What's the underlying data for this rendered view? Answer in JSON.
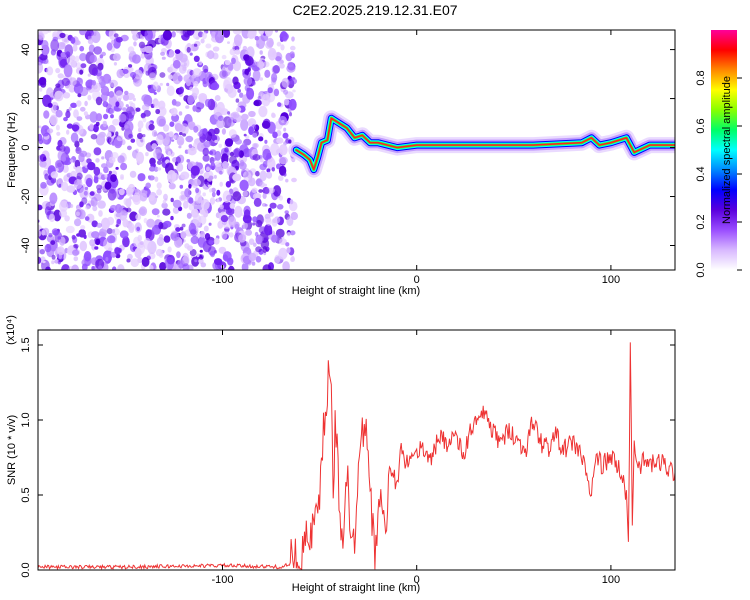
{
  "title": "C2E2.2025.219.12.31.E07",
  "chart_data": [
    {
      "type": "heatmap",
      "xlabel": "Height of straight line (km)",
      "ylabel": "Frequency (Hz)",
      "xlim": [
        -195,
        133
      ],
      "ylim": [
        -50,
        48
      ],
      "xticks": [
        -100,
        0,
        100
      ],
      "yticks": [
        -40,
        -20,
        0,
        20,
        40
      ],
      "colorbar": {
        "label": "Normalized spectral amplitude",
        "range": [
          0,
          1
        ],
        "ticks": [
          "0.0",
          "0.2",
          "0.4",
          "0.6",
          "0.8"
        ],
        "colors": [
          "#ffffff",
          "#d8b8ff",
          "#9a4dff",
          "#5a00dd",
          "#0000ff",
          "#0088ff",
          "#00ffff",
          "#00ff66",
          "#88ff00",
          "#ffff00",
          "#ff8800",
          "#ff0000",
          "#ff0099"
        ]
      },
      "noise_region_x": [
        -195,
        -63
      ],
      "ridge": [
        {
          "x": -62,
          "y": -1
        },
        {
          "x": -58,
          "y": -3
        },
        {
          "x": -55,
          "y": -5
        },
        {
          "x": -53,
          "y": -9
        },
        {
          "x": -51,
          "y": -4
        },
        {
          "x": -49,
          "y": 2
        },
        {
          "x": -46,
          "y": 3
        },
        {
          "x": -44,
          "y": 12
        },
        {
          "x": -40,
          "y": 10
        },
        {
          "x": -36,
          "y": 8
        },
        {
          "x": -32,
          "y": 4
        },
        {
          "x": -28,
          "y": 5
        },
        {
          "x": -24,
          "y": 2
        },
        {
          "x": -20,
          "y": 2
        },
        {
          "x": -10,
          "y": 0
        },
        {
          "x": 0,
          "y": 1
        },
        {
          "x": 10,
          "y": 1
        },
        {
          "x": 30,
          "y": 1
        },
        {
          "x": 60,
          "y": 1
        },
        {
          "x": 85,
          "y": 2
        },
        {
          "x": 90,
          "y": 4
        },
        {
          "x": 94,
          "y": 1
        },
        {
          "x": 100,
          "y": 2
        },
        {
          "x": 108,
          "y": 4
        },
        {
          "x": 112,
          "y": -2
        },
        {
          "x": 120,
          "y": 1
        },
        {
          "x": 133,
          "y": 1
        }
      ]
    },
    {
      "type": "line",
      "xlabel": "Height of straight line (km)",
      "ylabel": "SNR (10 * v/v)",
      "yscale_label": "(x10⁴)",
      "xlim": [
        -195,
        133
      ],
      "ylim": [
        0,
        1.6
      ],
      "xticks": [
        -100,
        0,
        100
      ],
      "yticks": [
        0.0,
        0.5,
        1.0,
        1.5
      ],
      "ytick_labels": [
        "0.0",
        "0.5",
        "1.0",
        "1.5"
      ],
      "color": "#ee3333",
      "series": [
        {
          "x": [
            -195,
            -150,
            -100,
            -70,
            -62,
            -55,
            -50,
            -48,
            -46,
            -44,
            -43,
            -42,
            -40,
            -38,
            -36,
            -35,
            -34,
            -32,
            -30,
            -28,
            -26,
            -24,
            -22,
            -20,
            -18,
            -16,
            -14,
            -12,
            -10,
            -8,
            -6,
            -4,
            -2,
            0,
            4,
            8,
            12,
            16,
            20,
            24,
            28,
            32,
            36,
            38,
            40,
            44,
            48,
            52,
            56,
            60,
            64,
            68,
            72,
            76,
            80,
            84,
            88,
            90,
            92,
            96,
            100,
            104,
            106,
            108,
            109,
            110,
            111,
            112,
            114,
            118,
            122,
            126,
            130,
            133
          ],
          "values": [
            0.02,
            0.02,
            0.03,
            0.02,
            0.05,
            0.2,
            0.4,
            0.9,
            1.2,
            1.38,
            0.3,
            1.1,
            0.5,
            0.2,
            0.7,
            0.4,
            0.1,
            0.2,
            0.8,
            0.9,
            1.1,
            0.6,
            0.1,
            0.4,
            0.5,
            0.2,
            0.7,
            0.6,
            0.6,
            0.8,
            0.7,
            0.75,
            0.7,
            0.8,
            0.8,
            0.75,
            0.9,
            0.85,
            0.9,
            0.75,
            0.95,
            1.0,
            1.05,
            0.95,
            0.9,
            0.85,
            0.95,
            0.85,
            0.8,
            1.0,
            0.85,
            0.82,
            0.9,
            0.8,
            0.85,
            0.8,
            0.6,
            0.5,
            0.75,
            0.7,
            0.75,
            0.68,
            0.6,
            0.5,
            0.15,
            1.55,
            0.3,
            0.85,
            0.7,
            0.72,
            0.7,
            0.72,
            0.68,
            0.65
          ]
        }
      ]
    }
  ]
}
